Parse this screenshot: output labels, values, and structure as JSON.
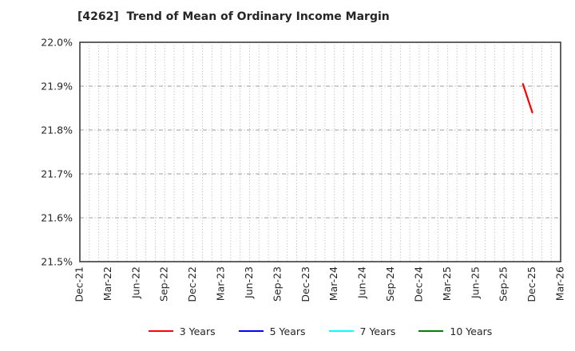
{
  "page": {
    "background": "#ffffff"
  },
  "chart_data": {
    "type": "line",
    "title": "[4262]  Trend of Mean of Ordinary Income Margin",
    "xlabel": "",
    "ylabel": "",
    "ylim": [
      21.5,
      22.0
    ],
    "y_ticks": [
      {
        "value": 21.5,
        "label": "21.5%"
      },
      {
        "value": 21.6,
        "label": "21.6%"
      },
      {
        "value": 21.7,
        "label": "21.7%"
      },
      {
        "value": 21.8,
        "label": "21.8%"
      },
      {
        "value": 21.9,
        "label": "21.9%"
      },
      {
        "value": 22.0,
        "label": "22.0%"
      }
    ],
    "x_axis": {
      "labels": [
        "Dec-21",
        "Mar-22",
        "Jun-22",
        "Sep-22",
        "Dec-22",
        "Mar-23",
        "Jun-23",
        "Sep-23",
        "Dec-23",
        "Mar-24",
        "Jun-24",
        "Sep-24",
        "Dec-24",
        "Mar-25",
        "Jun-25",
        "Sep-25",
        "Dec-25",
        "Mar-26"
      ],
      "months_per_label": 3,
      "total_month_intervals": 51,
      "minor_gridline_every_months": 1,
      "label_rotation_degrees": 90
    },
    "grid": {
      "vertical": "dotted monthly",
      "horizontal": "dash-dot per 0.1%",
      "color": "#ababab"
    },
    "legend_position": "bottom-center",
    "series": [
      {
        "name": "3 Years",
        "color": "#ff0000",
        "points": [
          {
            "month": "Nov-25",
            "month_index": 47,
            "value": 21.905
          },
          {
            "month": "Dec-25",
            "month_index": 48,
            "value": 21.84
          }
        ]
      },
      {
        "name": "5 Years",
        "color": "#0000ff",
        "points": []
      },
      {
        "name": "7 Years",
        "color": "#00ffff",
        "points": []
      },
      {
        "name": "10 Years",
        "color": "#008000",
        "points": []
      }
    ],
    "colors": {
      "frame": "#3c3c3c",
      "text": "#262626",
      "grid": "#ababab"
    }
  }
}
